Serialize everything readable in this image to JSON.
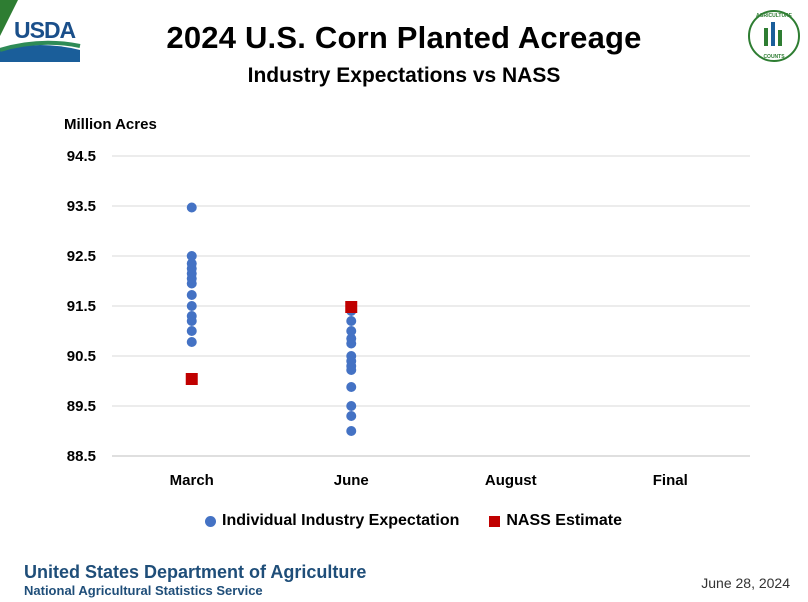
{
  "header": {
    "title": "2024 U.S. Corn Planted Acreage",
    "subtitle": "Industry Expectations vs NASS",
    "logo_left": "USDA",
    "logo_right": "AGRICULTURE COUNTS"
  },
  "chart_data": {
    "type": "scatter",
    "ylabel": "Million Acres",
    "ylim": [
      88.5,
      94.5
    ],
    "yticks": [
      "94.5",
      "93.5",
      "92.5",
      "91.5",
      "90.5",
      "89.5",
      "88.5"
    ],
    "categories": [
      "March",
      "June",
      "August",
      "Final"
    ],
    "grid": true,
    "legend_position": "bottom",
    "series": [
      {
        "name": "Individual Industry Expectation",
        "color": "#4472C4",
        "marker": "circle",
        "points": [
          {
            "x": "March",
            "y": 93.47
          },
          {
            "x": "March",
            "y": 92.5
          },
          {
            "x": "March",
            "y": 92.35
          },
          {
            "x": "March",
            "y": 92.25
          },
          {
            "x": "March",
            "y": 92.15
          },
          {
            "x": "March",
            "y": 92.05
          },
          {
            "x": "March",
            "y": 91.95
          },
          {
            "x": "March",
            "y": 91.72
          },
          {
            "x": "March",
            "y": 91.5
          },
          {
            "x": "March",
            "y": 91.3
          },
          {
            "x": "March",
            "y": 91.2
          },
          {
            "x": "March",
            "y": 91.0
          },
          {
            "x": "March",
            "y": 90.78
          },
          {
            "x": "June",
            "y": 91.4
          },
          {
            "x": "June",
            "y": 91.2
          },
          {
            "x": "June",
            "y": 91.0
          },
          {
            "x": "June",
            "y": 90.85
          },
          {
            "x": "June",
            "y": 90.75
          },
          {
            "x": "June",
            "y": 90.5
          },
          {
            "x": "June",
            "y": 90.4
          },
          {
            "x": "June",
            "y": 90.3
          },
          {
            "x": "June",
            "y": 90.22
          },
          {
            "x": "June",
            "y": 89.88
          },
          {
            "x": "June",
            "y": 89.5
          },
          {
            "x": "June",
            "y": 89.3
          },
          {
            "x": "June",
            "y": 89.0
          }
        ]
      },
      {
        "name": "NASS Estimate",
        "color": "#C00000",
        "marker": "square",
        "points": [
          {
            "x": "March",
            "y": 90.04
          },
          {
            "x": "June",
            "y": 91.48
          }
        ]
      }
    ]
  },
  "footer": {
    "department": "United States Department of Agriculture",
    "service": "National Agricultural Statistics Service",
    "date": "June 28, 2024"
  }
}
